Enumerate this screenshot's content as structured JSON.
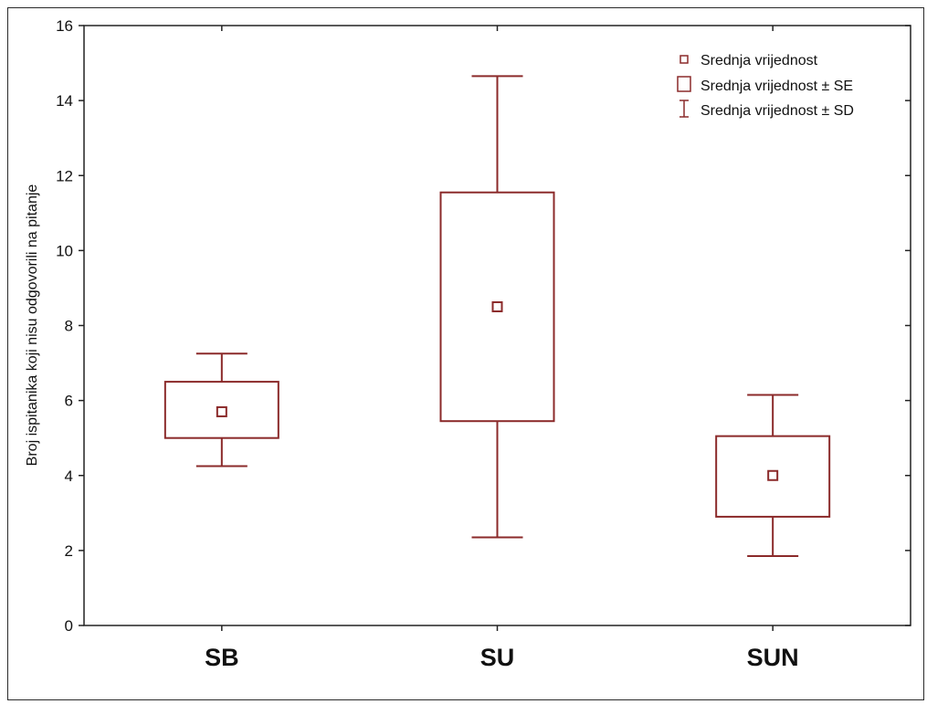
{
  "chart_data": {
    "type": "box",
    "title": "",
    "xlabel": "",
    "ylabel": "Broj ispitanika koji nisu odgovorili na pitanje",
    "ylim": [
      0,
      16
    ],
    "yticks": [
      "0",
      "2",
      "4",
      "6",
      "8",
      "10",
      "12",
      "14",
      "16"
    ],
    "categories": [
      "SB",
      "SU",
      "SUN"
    ],
    "series": [
      {
        "category": "SB",
        "mean": 5.7,
        "se_low": 5.0,
        "se_high": 6.5,
        "sd_low": 4.25,
        "sd_high": 7.25
      },
      {
        "category": "SU",
        "mean": 8.5,
        "se_low": 5.45,
        "se_high": 11.55,
        "sd_low": 2.35,
        "sd_high": 14.65
      },
      {
        "category": "SUN",
        "mean": 4.0,
        "se_low": 2.9,
        "se_high": 5.05,
        "sd_low": 1.85,
        "sd_high": 6.15
      }
    ],
    "legend": {
      "position": "top-right",
      "items": [
        "Srednja vrijednost",
        "Srednja vrijednost ± SE",
        "Srednja vrijednost ± SD"
      ]
    },
    "grid": false,
    "colors": {
      "boxes": "#8b2a2a",
      "axes": "#222222"
    }
  }
}
